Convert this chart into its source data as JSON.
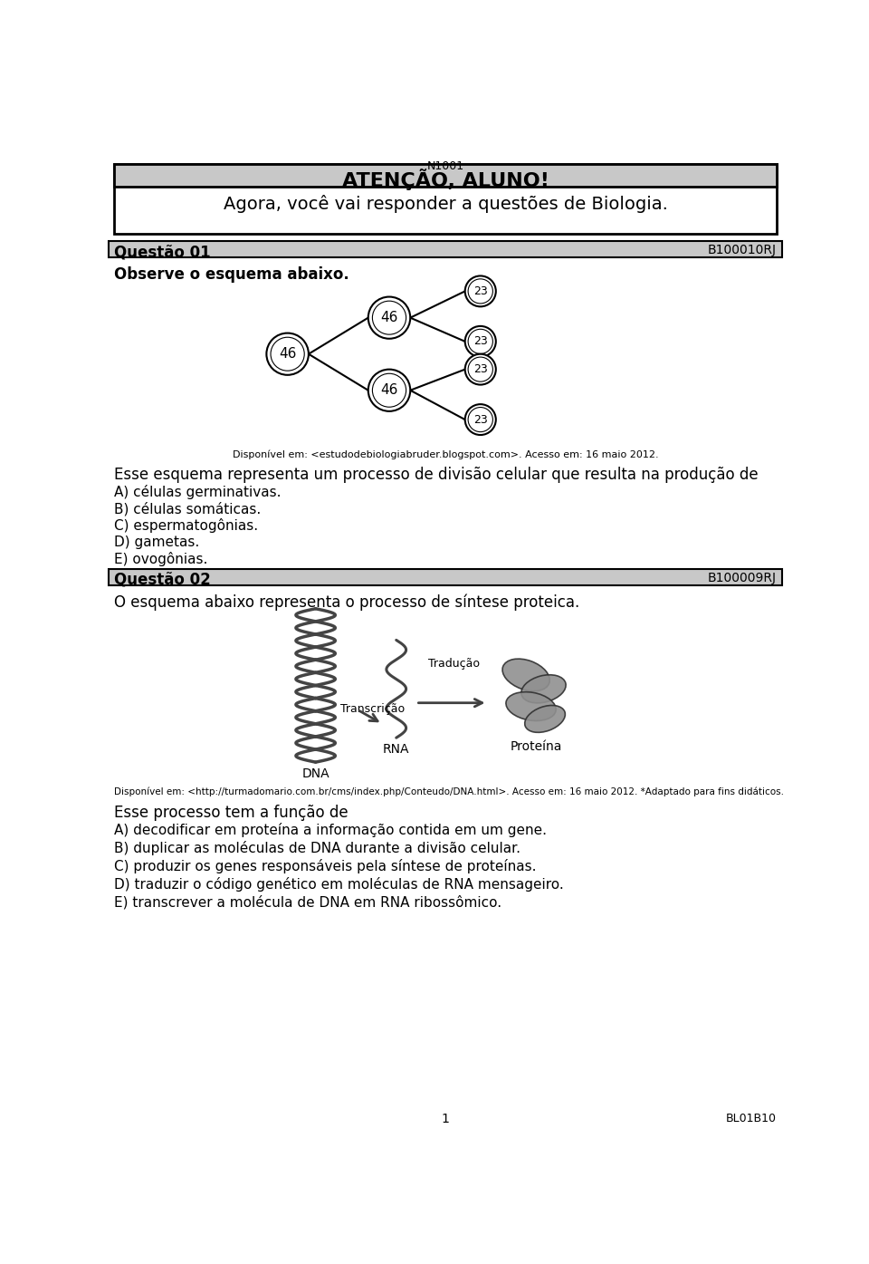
{
  "page_title": "N1001",
  "attention_title": "ATENÇÃO, ALUNO!",
  "attention_subtitle": "Agora, você vai responder a questões de Biologia.",
  "q1_label": "Questão 01",
  "q1_code": "B100010RJ",
  "q1_instruction": "Observe o esquema abaixo.",
  "q1_source": "Disponível em: <estudodebiologiabruder.blogspot.com>. Acesso em: 16 maio 2012.",
  "q1_question": "Esse esquema representa um processo de divisão celular que resulta na produção de",
  "q1_options": [
    "A) células germinativas.",
    "B) células somáticas.",
    "C) espermatogônias.",
    "D) gametas.",
    "E) ovogônias."
  ],
  "q2_label": "Questão 02",
  "q2_code": "B100009RJ",
  "q2_instruction": "O esquema abaixo representa o processo de síntese proteica.",
  "q2_source": "Disponível em: <http://turmadomario.com.br/cms/index.php/Conteudo/DNA.html>. Acesso em: 16 maio 2012. *Adaptado para fins didáticos.",
  "q2_question": "Esse processo tem a função de",
  "q2_options": [
    "A) decodificar em proteína a informação contida em um gene.",
    "B) duplicar as moléculas de DNA durante a divisão celular.",
    "C) produzir os genes responsáveis pela síntese de proteínas.",
    "D) traduzir o código genético em moléculas de RNA mensageiro.",
    "E) transcrever a molécula de DNA em RNA ribossômico."
  ],
  "footer_center": "1",
  "footer_right": "BL01B10",
  "bg_color": "#ffffff",
  "header_bg": "#c8c8c8",
  "q_header_bg": "#c8c8c8",
  "border_color": "#000000"
}
